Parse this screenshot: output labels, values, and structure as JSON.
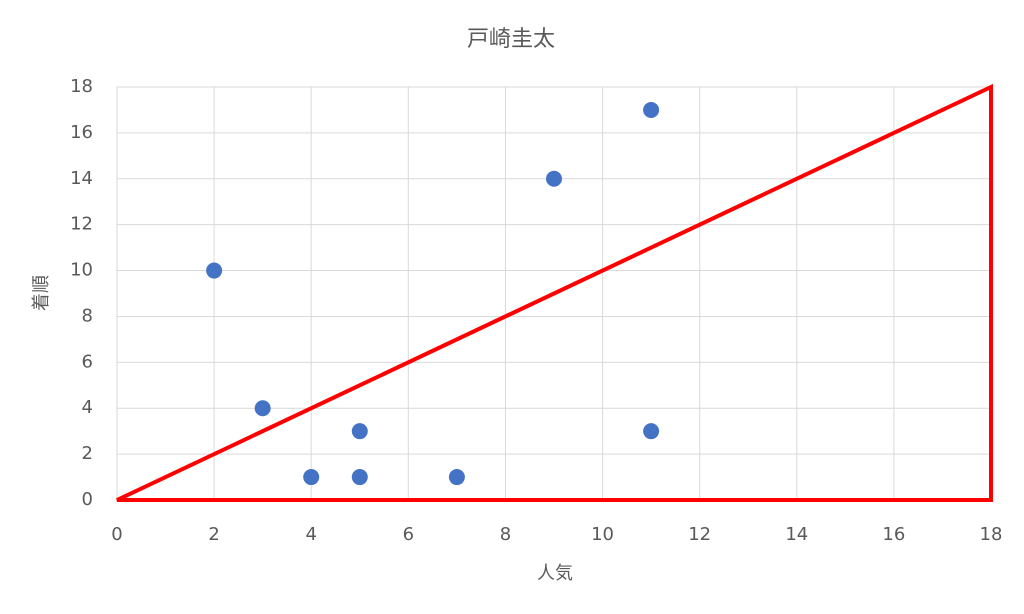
{
  "chart_data": {
    "type": "scatter",
    "title": "戸崎圭太",
    "x_label": "人気",
    "y_label": "着順",
    "series": [
      {
        "color": "#4472c4",
        "x": [
          2,
          3,
          4,
          5,
          5,
          7,
          9,
          11,
          11
        ],
        "values": [
          10,
          4,
          1,
          3,
          1,
          1,
          14,
          17,
          3
        ]
      }
    ],
    "xlim": [
      0,
      18
    ],
    "ylim": [
      0,
      18
    ],
    "xticks": [
      0,
      2,
      4,
      6,
      8,
      10,
      12,
      14,
      16,
      18
    ],
    "yticks": [
      0,
      2,
      4,
      6,
      8,
      10,
      12,
      14,
      16,
      18
    ],
    "grid": true
  }
}
